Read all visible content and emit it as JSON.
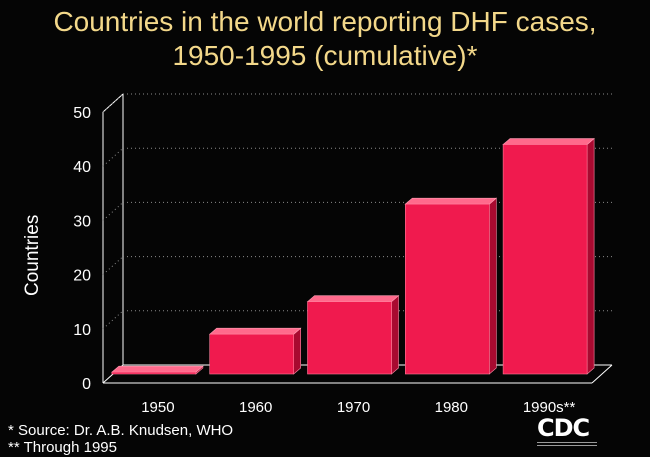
{
  "chart_data": {
    "type": "bar",
    "title": "Countries in the world reporting DHF cases, 1950-1995 (cumulative)*",
    "title_lines": [
      "Countries in the world reporting DHF cases,",
      "1950-1995 (cumulative)*"
    ],
    "xlabel": "",
    "ylabel": "Countries",
    "categories": [
      "1950",
      "1960",
      "1970",
      "1980",
      "1990s**"
    ],
    "values": [
      2,
      9,
      15,
      33,
      44
    ],
    "ylim": [
      0,
      50
    ],
    "yticks": [
      "0",
      "10",
      "20",
      "30",
      "40",
      "50"
    ],
    "grid": "dotted horizontal",
    "legend": "none"
  },
  "footnotes": [
    "*  Source:  Dr. A.B. Knudsen, WHO",
    "**  Through 1995"
  ],
  "logo": {
    "text": "CDC"
  },
  "colors": {
    "background": "#050505",
    "title": "#f3d88a",
    "bar_front": "#f01a4e",
    "bar_top": "#ff6a8c",
    "bar_side": "#a80a30",
    "axis": "#ffffff"
  }
}
